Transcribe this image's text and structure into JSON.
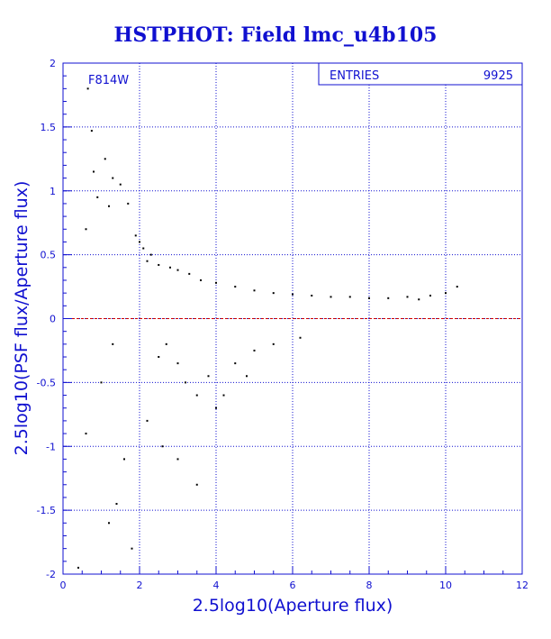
{
  "chart_data": {
    "type": "scatter",
    "title": "HSTPHOT: Field lmc_u4b105",
    "xlabel": "2.5log10(Aperture flux)",
    "ylabel": "2.5log10(PSF flux/Aperture flux)",
    "xlim": [
      0,
      12
    ],
    "ylim": [
      -2,
      2
    ],
    "xticks": [
      "0",
      "2",
      "4",
      "6",
      "8",
      "10",
      "12"
    ],
    "yticks": [
      "-2",
      "-1.5",
      "-1",
      "-0.5",
      "0",
      "0.5",
      "1",
      "1.5",
      "2"
    ],
    "grid": true,
    "annotation": "F814W",
    "stats": {
      "label": "ENTRIES",
      "value": "9925"
    },
    "reference_line_y": 0,
    "points": [
      [
        0.65,
        1.8
      ],
      [
        0.75,
        1.47
      ],
      [
        1.1,
        1.25
      ],
      [
        0.8,
        1.15
      ],
      [
        1.3,
        1.1
      ],
      [
        0.9,
        0.95
      ],
      [
        1.5,
        1.05
      ],
      [
        1.2,
        0.88
      ],
      [
        1.7,
        0.9
      ],
      [
        0.6,
        0.7
      ],
      [
        1.9,
        0.65
      ],
      [
        2.0,
        0.6
      ],
      [
        2.1,
        0.55
      ],
      [
        2.3,
        0.5
      ],
      [
        2.2,
        0.45
      ],
      [
        2.5,
        0.42
      ],
      [
        2.8,
        0.4
      ],
      [
        3.0,
        0.38
      ],
      [
        3.3,
        0.35
      ],
      [
        3.6,
        0.3
      ],
      [
        4.0,
        0.28
      ],
      [
        4.5,
        0.25
      ],
      [
        5.0,
        0.22
      ],
      [
        5.5,
        0.2
      ],
      [
        6.0,
        0.19
      ],
      [
        6.5,
        0.18
      ],
      [
        7.0,
        0.17
      ],
      [
        7.5,
        0.17
      ],
      [
        8.0,
        0.16
      ],
      [
        8.5,
        0.16
      ],
      [
        9.0,
        0.17
      ],
      [
        9.3,
        0.15
      ],
      [
        9.6,
        0.18
      ],
      [
        10.0,
        0.2
      ],
      [
        10.3,
        0.25
      ],
      [
        2.7,
        -0.2
      ],
      [
        3.0,
        -0.35
      ],
      [
        3.2,
        -0.5
      ],
      [
        3.5,
        -0.6
      ],
      [
        3.8,
        -0.45
      ],
      [
        2.5,
        -0.3
      ],
      [
        2.2,
        -0.8
      ],
      [
        2.6,
        -1.0
      ],
      [
        3.0,
        -1.1
      ],
      [
        3.5,
        -1.3
      ],
      [
        4.0,
        -0.7
      ],
      [
        1.4,
        -1.45
      ],
      [
        1.6,
        -1.1
      ],
      [
        1.2,
        -1.6
      ],
      [
        1.8,
        -1.8
      ],
      [
        0.4,
        -1.95
      ],
      [
        0.6,
        -0.9
      ],
      [
        1.0,
        -0.5
      ],
      [
        1.3,
        -0.2
      ],
      [
        4.5,
        -0.35
      ],
      [
        5.0,
        -0.25
      ],
      [
        5.5,
        -0.2
      ],
      [
        6.2,
        -0.15
      ],
      [
        4.2,
        -0.6
      ],
      [
        4.8,
        -0.45
      ]
    ]
  }
}
